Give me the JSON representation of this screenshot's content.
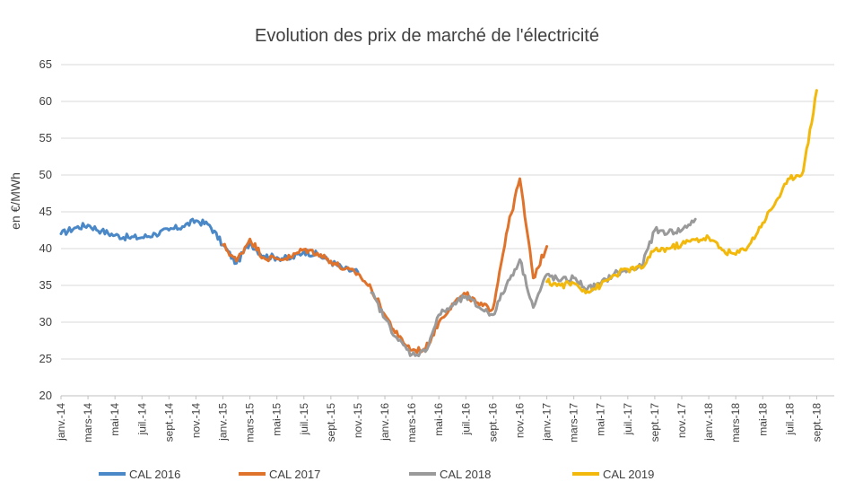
{
  "chart_data": {
    "type": "line",
    "title": "Evolution des prix de marché de l'électricité",
    "xlabel": "",
    "ylabel": "en €/MWh",
    "ylim": [
      20,
      65
    ],
    "y_ticks": [
      20,
      25,
      30,
      35,
      40,
      45,
      50,
      55,
      60,
      65
    ],
    "x_tick_labels": [
      "janv.-14",
      "mars-14",
      "mai-14",
      "juil.-14",
      "sept.-14",
      "nov.-14",
      "janv.-15",
      "mars-15",
      "mai-15",
      "juil.-15",
      "sept.-15",
      "nov.-15",
      "janv.-16",
      "mars-16",
      "mai-16",
      "juil.-16",
      "sept.-16",
      "nov.-16",
      "janv.-17",
      "mars-17",
      "mai-17",
      "juil.-17",
      "sept.-17",
      "nov.-17",
      "janv.-18",
      "mars-18",
      "mai-18",
      "juil.-18",
      "sept.-18"
    ],
    "x_range": [
      "2014-01",
      "2018-09"
    ],
    "grid": true,
    "legend_position": "bottom",
    "series": [
      {
        "name": "CAL 2016",
        "color": "#4a88c7",
        "points": [
          [
            "2014-01",
            42.0
          ],
          [
            "2014-02",
            42.8
          ],
          [
            "2014-03",
            43.2
          ],
          [
            "2014-04",
            42.4
          ],
          [
            "2014-05",
            41.8
          ],
          [
            "2014-06",
            41.5
          ],
          [
            "2014-07",
            41.5
          ],
          [
            "2014-08",
            42.0
          ],
          [
            "2014-09",
            42.5
          ],
          [
            "2014-10",
            43.0
          ],
          [
            "2014-11",
            43.8
          ],
          [
            "2014-12",
            43.2
          ],
          [
            "2015-01",
            40.5
          ],
          [
            "2015-02",
            38.0
          ],
          [
            "2015-03",
            40.8
          ],
          [
            "2015-04",
            39.0
          ],
          [
            "2015-05",
            38.8
          ],
          [
            "2015-06",
            38.6
          ],
          [
            "2015-07",
            39.6
          ],
          [
            "2015-08",
            39.2
          ],
          [
            "2015-09",
            38.2
          ],
          [
            "2015-10",
            37.2
          ],
          [
            "2015-11",
            36.8
          ]
        ]
      },
      {
        "name": "CAL 2017",
        "color": "#e0732c",
        "points": [
          [
            "2015-01",
            40.5
          ],
          [
            "2015-02",
            38.3
          ],
          [
            "2015-03",
            41.3
          ],
          [
            "2015-04",
            38.8
          ],
          [
            "2015-05",
            38.6
          ],
          [
            "2015-06",
            38.8
          ],
          [
            "2015-07",
            39.9
          ],
          [
            "2015-08",
            39.4
          ],
          [
            "2015-09",
            38.3
          ],
          [
            "2015-10",
            37.2
          ],
          [
            "2015-11",
            36.6
          ],
          [
            "2015-12",
            34.5
          ],
          [
            "2016-01",
            31.0
          ],
          [
            "2016-02",
            28.0
          ],
          [
            "2016-03",
            26.2
          ],
          [
            "2016-04",
            26.3
          ],
          [
            "2016-05",
            30.0
          ],
          [
            "2016-06",
            32.5
          ],
          [
            "2016-07",
            33.8
          ],
          [
            "2016-08",
            32.3
          ],
          [
            "2016-09",
            31.8
          ],
          [
            "2016-10",
            42.0
          ],
          [
            "2016-11",
            49.5
          ],
          [
            "2016-12",
            36.0
          ],
          [
            "2017-01",
            40.3
          ]
        ]
      },
      {
        "name": "CAL 2018",
        "color": "#9a9a9a",
        "points": [
          [
            "2015-12",
            34.0
          ],
          [
            "2016-01",
            30.5
          ],
          [
            "2016-02",
            27.5
          ],
          [
            "2016-03",
            25.6
          ],
          [
            "2016-04",
            26.0
          ],
          [
            "2016-05",
            31.0
          ],
          [
            "2016-06",
            32.2
          ],
          [
            "2016-07",
            33.5
          ],
          [
            "2016-08",
            32.0
          ],
          [
            "2016-09",
            31.0
          ],
          [
            "2016-10",
            35.0
          ],
          [
            "2016-11",
            38.5
          ],
          [
            "2016-12",
            32.0
          ],
          [
            "2017-01",
            36.5
          ],
          [
            "2017-02",
            35.6
          ],
          [
            "2017-03",
            36.0
          ],
          [
            "2017-04",
            34.5
          ],
          [
            "2017-05",
            35.2
          ],
          [
            "2017-06",
            36.6
          ],
          [
            "2017-07",
            37.0
          ],
          [
            "2017-08",
            37.5
          ],
          [
            "2017-09",
            42.5
          ],
          [
            "2017-10",
            42.2
          ],
          [
            "2017-11",
            42.5
          ],
          [
            "2017-12",
            44.0
          ]
        ]
      },
      {
        "name": "CAL 2019",
        "color": "#f2b90c",
        "points": [
          [
            "2017-01",
            35.5
          ],
          [
            "2017-02",
            35.0
          ],
          [
            "2017-03",
            35.3
          ],
          [
            "2017-04",
            34.2
          ],
          [
            "2017-05",
            35.0
          ],
          [
            "2017-06",
            36.4
          ],
          [
            "2017-07",
            37.2
          ],
          [
            "2017-08",
            37.3
          ],
          [
            "2017-09",
            39.8
          ],
          [
            "2017-10",
            40.0
          ],
          [
            "2017-11",
            40.6
          ],
          [
            "2017-12",
            41.2
          ],
          [
            "2018-01",
            41.5
          ],
          [
            "2018-02",
            39.8
          ],
          [
            "2018-03",
            39.2
          ],
          [
            "2018-04",
            40.5
          ],
          [
            "2018-05",
            43.5
          ],
          [
            "2018-06",
            46.5
          ],
          [
            "2018-07",
            49.5
          ],
          [
            "2018-08",
            50.5
          ],
          [
            "2018-09",
            61.5
          ]
        ]
      }
    ]
  }
}
